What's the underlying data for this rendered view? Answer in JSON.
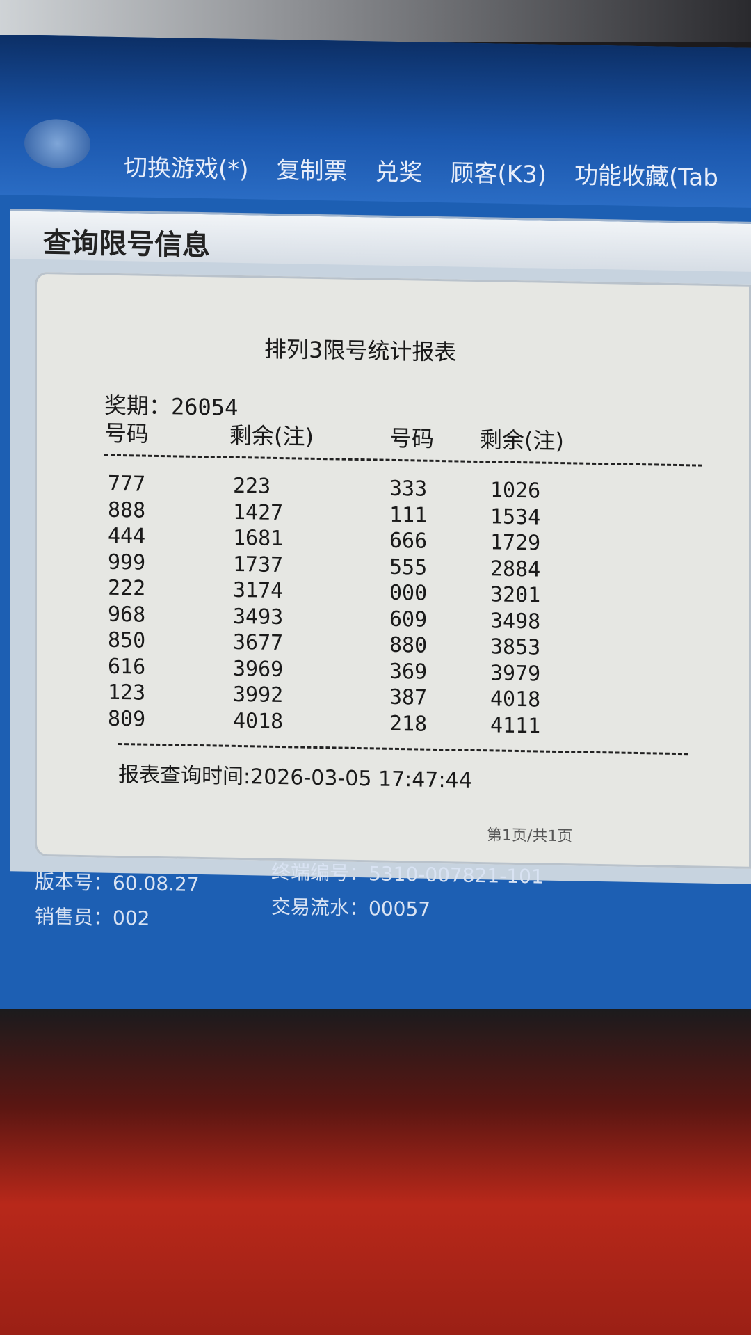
{
  "menu": {
    "items": [
      "切换游戏(*)",
      "复制票",
      "兑奖",
      "顾客(K3)",
      "功能收藏(Tab"
    ]
  },
  "window": {
    "title": "查询限号信息"
  },
  "report": {
    "title": "排列3限号统计报表",
    "issue_label": "奖期：26054",
    "headers": [
      "号码",
      "剩余(注)",
      "号码",
      "剩余(注)"
    ],
    "rows": [
      [
        "777",
        "223",
        "333",
        "1026"
      ],
      [
        "888",
        "1427",
        "111",
        "1534"
      ],
      [
        "444",
        "1681",
        "666",
        "1729"
      ],
      [
        "999",
        "1737",
        "555",
        "2884"
      ],
      [
        "222",
        "3174",
        "000",
        "3201"
      ],
      [
        "968",
        "3493",
        "609",
        "3498"
      ],
      [
        "850",
        "3677",
        "880",
        "3853"
      ],
      [
        "616",
        "3969",
        "369",
        "3979"
      ],
      [
        "123",
        "3992",
        "387",
        "4018"
      ],
      [
        "809",
        "4018",
        "218",
        "4111"
      ]
    ],
    "query_time": "报表查询时间:2026-03-05 17:47:44",
    "pager": "第1页/共1页"
  },
  "footer": {
    "version": "版本号：60.08.27",
    "terminal": "终端编号：5310-007821-101",
    "seller": "销售员：002",
    "serial": "交易流水：00057"
  }
}
